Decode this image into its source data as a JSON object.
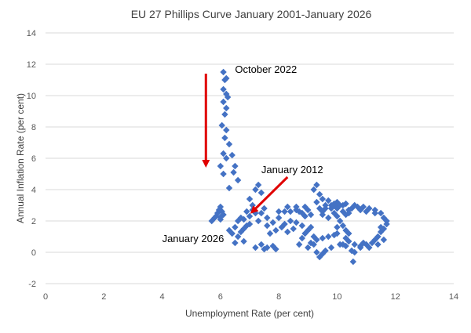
{
  "chart_data": {
    "type": "scatter",
    "title": "EU 27 Phillips Curve January 2001-January 2026",
    "xlabel": "Unemployment Rate (per cent)",
    "ylabel": "Annual Inflation Rate (per cent)",
    "xlim": [
      0,
      14
    ],
    "ylim": [
      -2,
      14
    ],
    "x_ticks": [
      "0",
      "2",
      "4",
      "6",
      "8",
      "10",
      "12",
      "14"
    ],
    "y_ticks": [
      "-2",
      "0",
      "2",
      "4",
      "6",
      "8",
      "10",
      "12",
      "14"
    ],
    "grid": "horizontal",
    "legend": "none",
    "marker": "diamond",
    "series": [
      {
        "color": "#4472C4",
        "points": [
          [
            6.1,
            11.5
          ],
          [
            6.15,
            11.0
          ],
          [
            6.2,
            11.1
          ],
          [
            6.1,
            10.4
          ],
          [
            6.2,
            10.1
          ],
          [
            6.25,
            9.9
          ],
          [
            6.1,
            9.6
          ],
          [
            6.2,
            9.2
          ],
          [
            6.15,
            8.8
          ],
          [
            6.05,
            8.1
          ],
          [
            6.2,
            7.8
          ],
          [
            6.15,
            7.3
          ],
          [
            6.3,
            6.9
          ],
          [
            6.1,
            6.3
          ],
          [
            6.2,
            6.0
          ],
          [
            6.4,
            6.2
          ],
          [
            6.5,
            5.5
          ],
          [
            6.45,
            5.1
          ],
          [
            6.6,
            4.6
          ],
          [
            6.3,
            4.1
          ],
          [
            6.0,
            5.5
          ],
          [
            6.1,
            5.0
          ],
          [
            6.0,
            2.9
          ],
          [
            6.05,
            2.6
          ],
          [
            5.9,
            2.5
          ],
          [
            5.8,
            2.2
          ],
          [
            5.7,
            2.0
          ],
          [
            5.85,
            2.3
          ],
          [
            6.0,
            2.1
          ],
          [
            5.95,
            2.7
          ],
          [
            6.1,
            2.4
          ],
          [
            6.0,
            2.25
          ],
          [
            7.3,
            4.3
          ],
          [
            7.2,
            4.0
          ],
          [
            7.4,
            3.8
          ],
          [
            7.0,
            3.4
          ],
          [
            7.1,
            3.0
          ],
          [
            7.5,
            2.8
          ],
          [
            7.2,
            2.5
          ],
          [
            7.6,
            2.2
          ],
          [
            7.3,
            2.0
          ],
          [
            7.0,
            2.3
          ],
          [
            6.9,
            2.6
          ],
          [
            7.1,
            2.7
          ],
          [
            7.4,
            2.5
          ],
          [
            7.0,
            1.8
          ],
          [
            6.8,
            1.5
          ],
          [
            6.7,
            1.3
          ],
          [
            6.9,
            1.7
          ],
          [
            6.5,
            1.6
          ],
          [
            6.4,
            1.2
          ],
          [
            6.6,
            1.0
          ],
          [
            6.8,
            0.7
          ],
          [
            6.5,
            0.6
          ],
          [
            6.3,
            1.4
          ],
          [
            6.6,
            2.0
          ],
          [
            6.7,
            2.2
          ],
          [
            6.8,
            2.1
          ],
          [
            7.8,
            1.9
          ],
          [
            8.0,
            2.2
          ],
          [
            8.2,
            1.8
          ],
          [
            8.5,
            1.5
          ],
          [
            8.3,
            1.3
          ],
          [
            8.6,
            1.9
          ],
          [
            8.8,
            1.7
          ],
          [
            8.4,
            2.0
          ],
          [
            8.1,
            1.6
          ],
          [
            7.9,
            1.4
          ],
          [
            7.6,
            1.7
          ],
          [
            7.7,
            1.2
          ],
          [
            7.8,
            0.4
          ],
          [
            7.6,
            0.3
          ],
          [
            7.9,
            0.2
          ],
          [
            7.2,
            0.3
          ],
          [
            7.5,
            0.2
          ],
          [
            7.4,
            0.5
          ],
          [
            8.6,
            2.7
          ],
          [
            8.8,
            2.5
          ],
          [
            9.0,
            2.7
          ],
          [
            9.1,
            2.4
          ],
          [
            8.9,
            2.3
          ],
          [
            8.7,
            2.6
          ],
          [
            8.4,
            2.6
          ],
          [
            8.2,
            2.6
          ],
          [
            8.0,
            2.6
          ],
          [
            8.3,
            2.9
          ],
          [
            8.6,
            2.9
          ],
          [
            8.9,
            2.9
          ],
          [
            9.3,
            4.3
          ],
          [
            9.2,
            4.0
          ],
          [
            9.4,
            3.7
          ],
          [
            9.5,
            3.4
          ],
          [
            9.3,
            3.2
          ],
          [
            9.6,
            3.0
          ],
          [
            9.8,
            2.8
          ],
          [
            9.4,
            2.8
          ],
          [
            9.9,
            3.1
          ],
          [
            9.7,
            3.3
          ],
          [
            9.9,
            2.5
          ],
          [
            10.0,
            2.8
          ],
          [
            10.1,
            3.0
          ],
          [
            10.2,
            2.6
          ],
          [
            10.3,
            2.4
          ],
          [
            10.0,
            2.3
          ],
          [
            9.7,
            2.2
          ],
          [
            9.5,
            2.4
          ],
          [
            10.1,
            2.0
          ],
          [
            10.2,
            1.7
          ],
          [
            10.3,
            1.4
          ],
          [
            10.0,
            1.6
          ],
          [
            10.4,
            1.2
          ],
          [
            10.3,
            0.9
          ],
          [
            10.1,
            0.5
          ],
          [
            9.8,
            0.3
          ],
          [
            9.6,
            0.1
          ],
          [
            9.5,
            -0.1
          ],
          [
            9.4,
            -0.3
          ],
          [
            9.3,
            0.0
          ],
          [
            9.2,
            0.5
          ],
          [
            9.3,
            0.8
          ],
          [
            9.5,
            0.9
          ],
          [
            9.7,
            1.0
          ],
          [
            9.9,
            1.1
          ],
          [
            10.0,
            1.2
          ],
          [
            9.0,
            1.4
          ],
          [
            9.1,
            1.6
          ],
          [
            9.2,
            1.0
          ],
          [
            9.1,
            0.6
          ],
          [
            9.0,
            0.3
          ],
          [
            8.8,
            0.9
          ],
          [
            8.9,
            1.2
          ],
          [
            8.7,
            0.5
          ],
          [
            10.4,
            2.5
          ],
          [
            10.5,
            2.8
          ],
          [
            10.6,
            3.0
          ],
          [
            10.7,
            2.9
          ],
          [
            10.9,
            2.9
          ],
          [
            11.1,
            2.8
          ],
          [
            11.3,
            2.7
          ],
          [
            11.5,
            2.5
          ],
          [
            11.6,
            2.2
          ],
          [
            11.7,
            2.0
          ],
          [
            11.7,
            1.8
          ],
          [
            11.6,
            1.5
          ],
          [
            11.5,
            1.3
          ],
          [
            11.4,
            1.0
          ],
          [
            11.3,
            0.8
          ],
          [
            11.2,
            0.6
          ],
          [
            11.0,
            0.5
          ],
          [
            10.9,
            0.6
          ],
          [
            10.8,
            0.3
          ],
          [
            10.6,
            0.0
          ],
          [
            10.55,
            -0.6
          ],
          [
            10.5,
            0.1
          ],
          [
            10.3,
            0.4
          ],
          [
            10.2,
            0.5
          ],
          [
            10.4,
            0.7
          ],
          [
            10.6,
            0.5
          ],
          [
            10.8,
            0.4
          ],
          [
            11.1,
            0.3
          ],
          [
            11.4,
            0.5
          ],
          [
            11.6,
            0.8
          ],
          [
            11.5,
            1.6
          ],
          [
            11.3,
            2.5
          ],
          [
            11.0,
            2.6
          ],
          [
            10.8,
            2.7
          ],
          [
            9.5,
            2.6
          ],
          [
            9.6,
            2.8
          ],
          [
            9.8,
            3.0
          ],
          [
            10.0,
            3.2
          ],
          [
            10.2,
            3.0
          ],
          [
            10.4,
            2.7
          ],
          [
            10.3,
            3.1
          ],
          [
            9.9,
            3.0
          ]
        ]
      }
    ],
    "annotations": [
      {
        "text": "October 2022",
        "x": 6.5,
        "y": 11.7
      },
      {
        "text": "January 2012",
        "x": 7.4,
        "y": 5.3
      },
      {
        "text": "January 2026",
        "x": 4.0,
        "y": 0.9
      }
    ],
    "arrows": [
      {
        "from": [
          5.5,
          11.4
        ],
        "to": [
          5.5,
          5.6
        ],
        "color": "#E00000"
      },
      {
        "from": [
          8.3,
          4.8
        ],
        "to": [
          7.1,
          2.6
        ],
        "color": "#E00000"
      }
    ]
  }
}
